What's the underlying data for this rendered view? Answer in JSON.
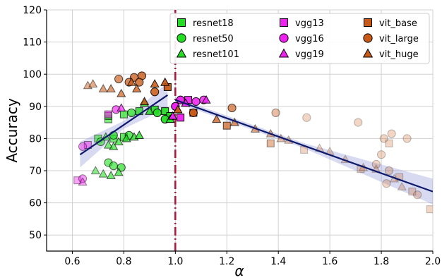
{
  "chart_data": {
    "type": "scatter",
    "title": "",
    "xlabel": "α",
    "ylabel": "Accuracy",
    "xlim": [
      0.5,
      2.0
    ],
    "ylim": [
      45,
      120
    ],
    "xticks": [
      0.6,
      0.8,
      1.0,
      1.2,
      1.4,
      1.6,
      1.8,
      2.0
    ],
    "xtick_labels": [
      "0.6",
      "0.8",
      "1.0",
      "1.2",
      "1.4",
      "1.6",
      "1.8",
      "2.0"
    ],
    "yticks": [
      50,
      60,
      70,
      80,
      90,
      100,
      110,
      120
    ],
    "ytick_labels": [
      "50",
      "60",
      "70",
      "80",
      "90",
      "100",
      "110",
      "120"
    ],
    "grid": true,
    "legend_position": "top-right",
    "vline": {
      "x": 1.0,
      "color": "#b0163a",
      "style": "dash-dot"
    },
    "fit_lines": [
      {
        "x": [
          0.63,
          0.97
        ],
        "y": [
          75.0,
          93.5
        ],
        "color": "#0d1a6b",
        "band_color": "#8f96d6"
      },
      {
        "x": [
          1.0,
          2.0
        ],
        "y": [
          92.0,
          63.5
        ],
        "color": "#0d1a6b",
        "band_color": "#8f96d6"
      }
    ],
    "series": [
      {
        "name": "resnet18",
        "marker": "square",
        "color": "#22dd22",
        "points": [
          [
            0.74,
            86
          ],
          [
            0.74,
            87
          ],
          [
            0.8,
            87.5
          ],
          [
            0.86,
            88.5
          ],
          [
            0.92,
            89
          ],
          [
            0.96,
            88.5
          ],
          [
            0.98,
            87
          ],
          [
            0.7,
            80
          ],
          [
            0.76,
            80
          ],
          [
            0.8,
            80.5
          ]
        ]
      },
      {
        "name": "resnet50",
        "marker": "circle",
        "color": "#22dd22",
        "points": [
          [
            0.83,
            88
          ],
          [
            0.93,
            88
          ],
          [
            0.96,
            86
          ],
          [
            0.74,
            72.5
          ],
          [
            0.76,
            71.5
          ],
          [
            0.79,
            71
          ],
          [
            0.76,
            81
          ],
          [
            0.71,
            79
          ],
          [
            0.82,
            81
          ]
        ]
      },
      {
        "name": "resnet101",
        "marker": "triangle",
        "color": "#22dd22",
        "points": [
          [
            0.88,
            91
          ],
          [
            0.9,
            88.5
          ],
          [
            0.98,
            86
          ],
          [
            0.74,
            78
          ],
          [
            0.76,
            77.5
          ],
          [
            0.78,
            79
          ],
          [
            0.81,
            80
          ],
          [
            0.84,
            80.5
          ],
          [
            0.86,
            81
          ],
          [
            0.69,
            70
          ],
          [
            0.72,
            69
          ],
          [
            0.75,
            68.5
          ],
          [
            0.78,
            69.5
          ],
          [
            0.73,
            80.5
          ]
        ]
      },
      {
        "name": "vgg13",
        "marker": "square",
        "color": "#ee22ee",
        "points": [
          [
            0.62,
            67
          ],
          [
            0.66,
            78
          ],
          [
            0.74,
            87.5
          ],
          [
            1.02,
            86.5
          ],
          [
            1.05,
            92
          ]
        ]
      },
      {
        "name": "vgg16",
        "marker": "circle",
        "color": "#ee22ee",
        "points": [
          [
            0.64,
            77.5
          ],
          [
            0.64,
            67.5
          ],
          [
            0.77,
            89
          ],
          [
            1.0,
            90
          ],
          [
            1.02,
            92
          ],
          [
            1.08,
            91.5
          ],
          [
            1.11,
            92
          ]
        ]
      },
      {
        "name": "vgg19",
        "marker": "triangle",
        "color": "#ee22ee",
        "points": [
          [
            0.64,
            66.5
          ],
          [
            0.79,
            89.5
          ],
          [
            0.99,
            87
          ],
          [
            1.04,
            91
          ],
          [
            1.12,
            92
          ]
        ]
      },
      {
        "name": "vit_base",
        "marker": "square",
        "color": "#c85a18",
        "points": [
          [
            0.97,
            96
          ],
          [
            1.07,
            88
          ],
          [
            1.2,
            84
          ],
          [
            1.37,
            78.5
          ],
          [
            1.5,
            76.5
          ],
          [
            1.72,
            70.5
          ],
          [
            1.83,
            78.5
          ],
          [
            1.87,
            68
          ],
          [
            1.92,
            63.5
          ],
          [
            1.99,
            58
          ]
        ]
      },
      {
        "name": "vit_large",
        "marker": "circle",
        "color": "#c85a18",
        "points": [
          [
            0.78,
            98.5
          ],
          [
            0.82,
            97.5
          ],
          [
            0.84,
            99
          ],
          [
            0.87,
            99.5
          ],
          [
            0.86,
            97.5
          ],
          [
            0.92,
            94.5
          ],
          [
            1.07,
            88
          ],
          [
            1.22,
            89.5
          ],
          [
            1.39,
            88
          ],
          [
            1.51,
            86.5
          ],
          [
            1.71,
            85
          ],
          [
            1.8,
            75
          ],
          [
            1.81,
            80
          ],
          [
            1.84,
            81.5
          ],
          [
            1.9,
            80
          ],
          [
            1.83,
            70
          ],
          [
            1.78,
            72
          ],
          [
            1.82,
            66
          ],
          [
            1.94,
            62.5
          ]
        ]
      },
      {
        "name": "vit_huge",
        "marker": "triangle",
        "color": "#c85a18",
        "points": [
          [
            0.66,
            96.5
          ],
          [
            0.68,
            97
          ],
          [
            0.72,
            95.5
          ],
          [
            0.75,
            95.5
          ],
          [
            0.79,
            94
          ],
          [
            0.83,
            97.5
          ],
          [
            0.85,
            95.5
          ],
          [
            0.88,
            91.5
          ],
          [
            0.92,
            97
          ],
          [
            0.96,
            97.5
          ],
          [
            1.01,
            89
          ],
          [
            1.16,
            86
          ],
          [
            1.23,
            85
          ],
          [
            1.31,
            83
          ],
          [
            1.37,
            81.5
          ],
          [
            1.41,
            80
          ],
          [
            1.44,
            79.5
          ],
          [
            1.56,
            77
          ],
          [
            1.6,
            76
          ],
          [
            1.66,
            73.5
          ],
          [
            1.73,
            71
          ],
          [
            1.78,
            70.5
          ],
          [
            1.85,
            67.5
          ],
          [
            1.88,
            65
          ]
        ]
      }
    ]
  }
}
